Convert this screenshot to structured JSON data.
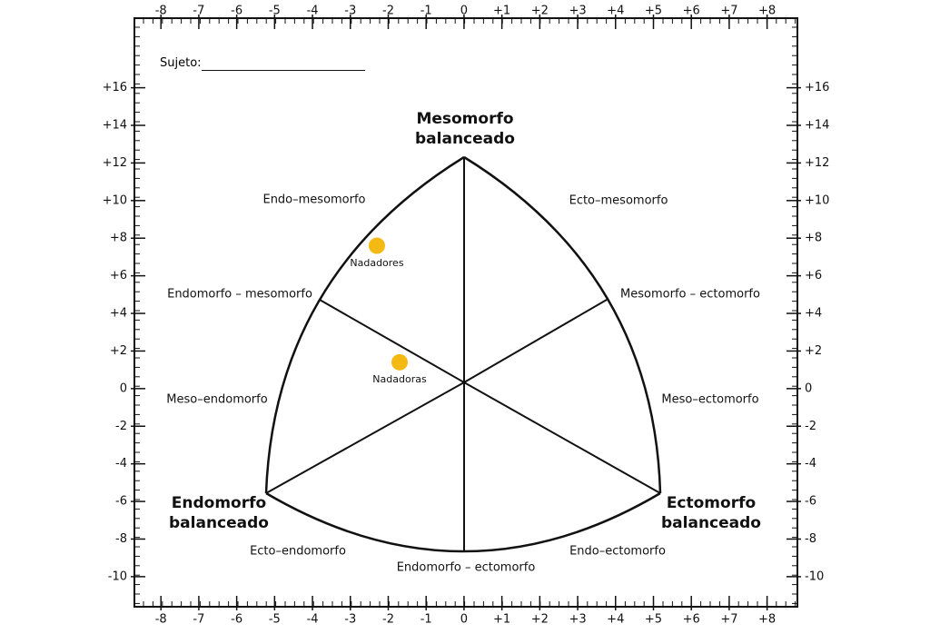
{
  "chart_data": {
    "type": "scatter",
    "subject_label": "Sujeto:",
    "annotations": [
      "Mesomorfo balanceado",
      "Endo–mesomorfo",
      "Ecto–mesomorfo",
      "Endomorfo – mesomorfo",
      "Mesomorfo – ectomorfo",
      "Meso–endomorfo",
      "Meso–ectomorfo",
      "Endomorfo balanceado",
      "Ectomorfo balanceado",
      "Ecto–endomorfo",
      "Endo–ectomorfo",
      "Endomorfo – ectomorfo"
    ],
    "series": [
      {
        "name": "Nadadores",
        "color": "#f5b914",
        "x": [
          -2.3
        ],
        "values": [
          7.6
        ]
      },
      {
        "name": "Nadadoras",
        "color": "#f5b914",
        "x": [
          -1.7
        ],
        "values": [
          1.4
        ]
      }
    ],
    "xlim": [
      -8.7,
      8.8
    ],
    "ylim": [
      -11.6,
      19.7
    ],
    "xticks": [
      -8,
      -7,
      -6,
      -5,
      -4,
      -3,
      -2,
      -1,
      0,
      {
        "value": 1,
        "label": "+1"
      },
      {
        "value": 2,
        "label": "+2"
      },
      {
        "value": 3,
        "label": "+3"
      },
      {
        "value": 4,
        "label": "+4"
      },
      {
        "value": 5,
        "label": "+5"
      },
      {
        "value": 6,
        "label": "+6"
      },
      {
        "value": 7,
        "label": "+7"
      },
      {
        "value": 8,
        "label": "+8"
      }
    ],
    "yticks": [
      -10,
      -8,
      -6,
      -4,
      -2,
      0,
      {
        "value": 2,
        "label": "+2"
      },
      {
        "value": 4,
        "label": "+4"
      },
      {
        "value": 6,
        "label": "+6"
      },
      {
        "value": 8,
        "label": "+8"
      },
      {
        "value": 10,
        "label": "+10"
      },
      {
        "value": 12,
        "label": "+12"
      },
      {
        "value": 14,
        "label": "+14"
      },
      {
        "value": 16,
        "label": "+16"
      }
    ]
  }
}
